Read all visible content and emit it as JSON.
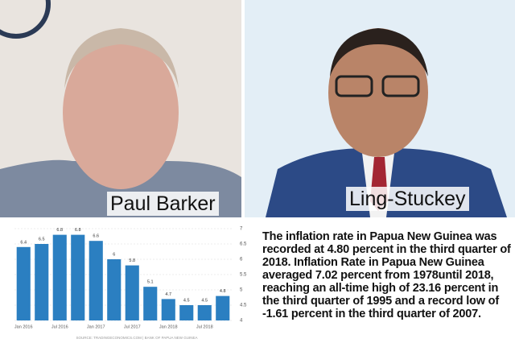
{
  "captions": [
    "Paul Barker",
    "Ling-Stuckey"
  ],
  "chart_data": {
    "type": "bar",
    "categories": [
      "Jan 2016",
      null,
      "Jul 2016",
      null,
      "Jan 2017",
      null,
      "Jul 2017",
      null,
      "Jan 2018",
      null,
      "Jul 2018",
      null
    ],
    "values": [
      6.4,
      6.5,
      6.8,
      6.8,
      6.6,
      6,
      5.8,
      5.1,
      4.7,
      4.5,
      4.5,
      4.8
    ],
    "color": "#2b7fc1",
    "ylim": [
      4,
      7
    ],
    "yticks": [
      4,
      4.5,
      5,
      5.5,
      6,
      6.5,
      7
    ],
    "grid": true,
    "source": "SOURCE: TRADINGECONOMICS.COM | BANK OF PAPUA NEW GUINEA"
  },
  "article": "The inflation rate in Papua New Guinea was recorded at 4.80 percent in the third quarter of 2018. Inflation Rate in Papua New Guinea averaged 7.02 percent from 1978until 2018, reaching an all-time high of 23.16 percent in the third quarter of 1995 and a record low of -1.61 percent in the third quarter of 2007."
}
